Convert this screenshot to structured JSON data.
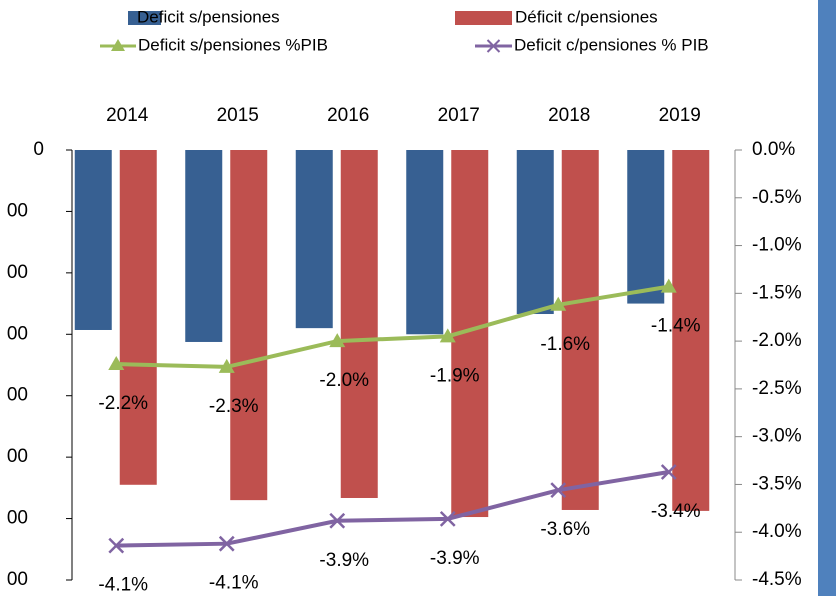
{
  "chart_data": {
    "type": "bar_line",
    "categories": [
      "2014",
      "2015",
      "2016",
      "2017",
      "2018",
      "2019"
    ],
    "series": [
      {
        "name": "Deficit s/pensiones",
        "color": "#376092",
        "values": [
          -2930,
          -3125,
          -2900,
          -3000,
          -2670,
          -2500
        ]
      },
      {
        "name": "Déficit c/pensiones",
        "color": "#c0504d",
        "values": [
          -5450,
          -5700,
          -5665,
          -5975,
          -5860,
          -5875
        ]
      },
      {
        "name": "Deficit s/pensiones %PIB",
        "color": "#9bbb59",
        "axis": "y2",
        "marker": "triangle",
        "values": [
          -2.24,
          -2.27,
          -2.0,
          -1.95,
          -1.62,
          -1.43
        ],
        "value_labels": [
          "-2.2%",
          "-2.3%",
          "-2.0%",
          "-1.9%",
          "-1.6%",
          "-1.4%"
        ]
      },
      {
        "name": "Deficit c/pensiones % PIB",
        "color": "#8064a2",
        "axis": "y2",
        "marker": "x",
        "values": [
          -4.14,
          -4.12,
          -3.88,
          -3.86,
          -3.56,
          -3.37
        ],
        "value_labels": [
          "-4.1%",
          "-4.1%",
          "-3.9%",
          "-3.9%",
          "-3.6%",
          "-3.4%"
        ]
      }
    ],
    "ylim": [
      0,
      -7000
    ],
    "yticks": [
      0,
      {
        "value": -1000,
        "label": "00"
      },
      {
        "value": -2000,
        "label": "00"
      },
      {
        "value": -3000,
        "label": "00"
      },
      {
        "value": -4000,
        "label": "00"
      },
      {
        "value": -5000,
        "label": "00"
      },
      {
        "value": -6000,
        "label": "00"
      },
      {
        "value": -7000,
        "label": "00"
      }
    ],
    "y2lim": [
      0,
      -4.5
    ],
    "y2ticks": [
      {
        "value": 0,
        "label": "0.0%"
      },
      {
        "value": -0.5,
        "label": "-0.5%"
      },
      {
        "value": -1.0,
        "label": "-1.0%"
      },
      {
        "value": -1.5,
        "label": "-1.5%"
      },
      {
        "value": -2.0,
        "label": "-2.0%"
      },
      {
        "value": -2.5,
        "label": "-2.5%"
      },
      {
        "value": -3.0,
        "label": "-3.0%"
      },
      {
        "value": -3.5,
        "label": "-3.5%"
      },
      {
        "value": -4.0,
        "label": "-4.0%"
      },
      {
        "value": -4.5,
        "label": "-4.5%"
      }
    ],
    "grid": false
  }
}
